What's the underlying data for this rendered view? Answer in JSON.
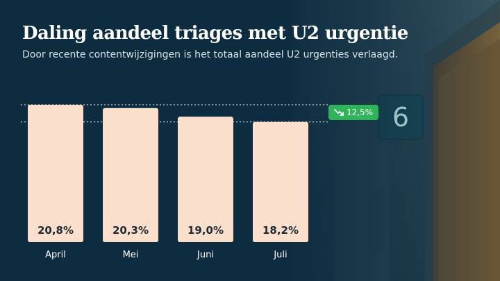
{
  "slide": {
    "title": "Daling aandeel triages met U2 urgentie",
    "subtitle": "Door recente contentwijzigingen is het totaal aandeel U2 urgenties verlaagd.",
    "room_number": "6"
  },
  "badge": {
    "icon": "trend-down-icon",
    "text": "12,5%",
    "color": "#2fb45a"
  },
  "colors": {
    "background": "#0d2c40",
    "bar": "#fbdfcd",
    "text": "#ffffff"
  },
  "chart_data": {
    "type": "bar",
    "categories": [
      "April",
      "Mei",
      "Juni",
      "Juli"
    ],
    "values": [
      20.8,
      20.3,
      19.0,
      18.2
    ],
    "value_labels": [
      "20,8%",
      "20,3%",
      "19,0%",
      "18,2%"
    ],
    "title": "",
    "xlabel": "",
    "ylabel": "",
    "ylim": [
      0,
      20.8
    ],
    "grid": false,
    "reference_lines": [
      20.8,
      18.2
    ]
  }
}
